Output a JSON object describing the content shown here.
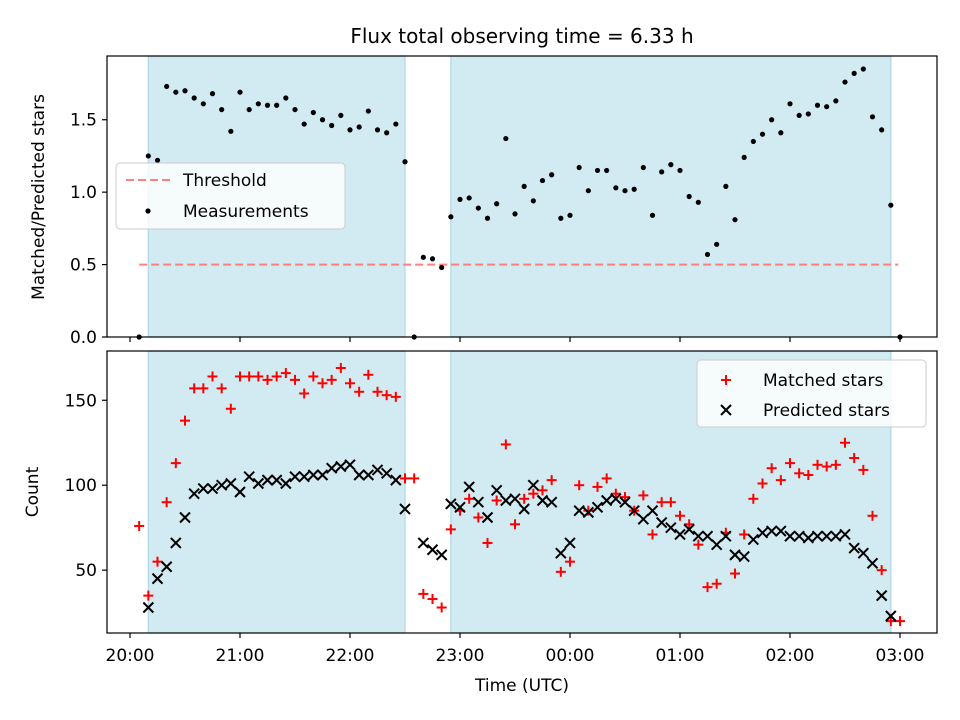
{
  "title": "Flux total observing time = 6.33 h",
  "xlabel": "Time (UTC)",
  "colors": {
    "shade": "#add8e6",
    "threshold": "#ff8080",
    "matched": "#ff0000",
    "predicted": "#000000",
    "measurement": "#000000"
  },
  "chart_data": [
    {
      "type": "scatter",
      "panel": "top",
      "ylabel": "Matched/Predicted stars",
      "ylim": [
        0,
        1.94
      ],
      "yticks": [
        0.0,
        0.5,
        1.0,
        1.5
      ],
      "ytick_labels": [
        "0.0",
        "0.5",
        "1.0",
        "1.5"
      ],
      "xticks": [
        "20:00",
        "21:00",
        "22:00",
        "23:00",
        "00:00",
        "01:00",
        "02:00",
        "03:00"
      ],
      "legend_position": "center-left",
      "shaded_intervals": [
        [
          "20:10",
          "22:30"
        ],
        [
          "22:55",
          "02:55"
        ]
      ],
      "threshold": {
        "name": "Threshold",
        "value": 0.5,
        "x_range": [
          "20:05",
          "02:59"
        ]
      },
      "series": [
        {
          "name": "Measurements",
          "points": [
            [
              "20:05",
              0.0
            ],
            [
              "20:10",
              1.25
            ],
            [
              "20:15",
              1.22
            ],
            [
              "20:20",
              1.73
            ],
            [
              "20:25",
              1.69
            ],
            [
              "20:30",
              1.7
            ],
            [
              "20:35",
              1.65
            ],
            [
              "20:40",
              1.61
            ],
            [
              "20:45",
              1.68
            ],
            [
              "20:50",
              1.57
            ],
            [
              "20:55",
              1.42
            ],
            [
              "21:00",
              1.69
            ],
            [
              "21:05",
              1.57
            ],
            [
              "21:10",
              1.61
            ],
            [
              "21:15",
              1.6
            ],
            [
              "21:20",
              1.6
            ],
            [
              "21:25",
              1.65
            ],
            [
              "21:30",
              1.57
            ],
            [
              "21:35",
              1.47
            ],
            [
              "21:40",
              1.55
            ],
            [
              "21:45",
              1.5
            ],
            [
              "21:50",
              1.46
            ],
            [
              "21:55",
              1.53
            ],
            [
              "22:00",
              1.43
            ],
            [
              "22:05",
              1.45
            ],
            [
              "22:10",
              1.56
            ],
            [
              "22:15",
              1.43
            ],
            [
              "22:20",
              1.41
            ],
            [
              "22:25",
              1.47
            ],
            [
              "22:30",
              1.21
            ],
            [
              "22:35",
              0.0
            ],
            [
              "22:40",
              0.55
            ],
            [
              "22:45",
              0.54
            ],
            [
              "22:50",
              0.48
            ],
            [
              "22:55",
              0.83
            ],
            [
              "23:00",
              0.95
            ],
            [
              "23:05",
              0.96
            ],
            [
              "23:10",
              0.89
            ],
            [
              "23:15",
              0.82
            ],
            [
              "23:20",
              0.92
            ],
            [
              "23:25",
              1.37
            ],
            [
              "23:30",
              0.85
            ],
            [
              "23:35",
              1.04
            ],
            [
              "23:40",
              0.94
            ],
            [
              "23:45",
              1.08
            ],
            [
              "23:50",
              1.12
            ],
            [
              "23:55",
              0.82
            ],
            [
              "00:00",
              0.84
            ],
            [
              "00:05",
              1.17
            ],
            [
              "00:10",
              1.01
            ],
            [
              "00:15",
              1.15
            ],
            [
              "00:20",
              1.15
            ],
            [
              "00:25",
              1.03
            ],
            [
              "00:30",
              1.01
            ],
            [
              "00:35",
              1.02
            ],
            [
              "00:40",
              1.17
            ],
            [
              "00:45",
              0.84
            ],
            [
              "00:50",
              1.14
            ],
            [
              "00:55",
              1.19
            ],
            [
              "01:00",
              1.15
            ],
            [
              "01:05",
              0.97
            ],
            [
              "01:10",
              0.93
            ],
            [
              "01:15",
              0.57
            ],
            [
              "01:20",
              0.64
            ],
            [
              "01:25",
              1.04
            ],
            [
              "01:30",
              0.81
            ],
            [
              "01:35",
              1.24
            ],
            [
              "01:40",
              1.35
            ],
            [
              "01:45",
              1.4
            ],
            [
              "01:50",
              1.5
            ],
            [
              "01:55",
              1.41
            ],
            [
              "02:00",
              1.61
            ],
            [
              "02:05",
              1.53
            ],
            [
              "02:10",
              1.54
            ],
            [
              "02:15",
              1.6
            ],
            [
              "02:20",
              1.59
            ],
            [
              "02:25",
              1.63
            ],
            [
              "02:30",
              1.76
            ],
            [
              "02:35",
              1.82
            ],
            [
              "02:40",
              1.85
            ],
            [
              "02:45",
              1.52
            ],
            [
              "02:50",
              1.43
            ],
            [
              "02:55",
              0.91
            ],
            [
              "03:00",
              0.0
            ]
          ]
        }
      ]
    },
    {
      "type": "scatter",
      "panel": "bottom",
      "ylabel": "Count",
      "ylim": [
        13,
        179
      ],
      "yticks": [
        50,
        100,
        150
      ],
      "ytick_labels": [
        "50",
        "100",
        "150"
      ],
      "xticks": [
        "20:00",
        "21:00",
        "22:00",
        "23:00",
        "00:00",
        "01:00",
        "02:00",
        "03:00"
      ],
      "xtick_labels": [
        "20:00",
        "21:00",
        "22:00",
        "23:00",
        "00:00",
        "01:00",
        "02:00",
        "03:00"
      ],
      "legend_position": "top-right",
      "shaded_intervals": [
        [
          "20:10",
          "22:30"
        ],
        [
          "22:55",
          "02:55"
        ]
      ],
      "series": [
        {
          "name": "Matched stars",
          "marker": "plus",
          "points": [
            [
              "20:05",
              76
            ],
            [
              "20:10",
              35
            ],
            [
              "20:15",
              55
            ],
            [
              "20:20",
              90
            ],
            [
              "20:25",
              113
            ],
            [
              "20:30",
              138
            ],
            [
              "20:35",
              157
            ],
            [
              "20:40",
              157
            ],
            [
              "20:45",
              164
            ],
            [
              "20:50",
              157
            ],
            [
              "20:55",
              145
            ],
            [
              "21:00",
              164
            ],
            [
              "21:05",
              164
            ],
            [
              "21:10",
              164
            ],
            [
              "21:15",
              162
            ],
            [
              "21:20",
              164
            ],
            [
              "21:25",
              166
            ],
            [
              "21:30",
              162
            ],
            [
              "21:35",
              154
            ],
            [
              "21:40",
              164
            ],
            [
              "21:45",
              160
            ],
            [
              "21:50",
              162
            ],
            [
              "21:55",
              169
            ],
            [
              "22:00",
              160
            ],
            [
              "22:05",
              155
            ],
            [
              "22:10",
              165
            ],
            [
              "22:15",
              155
            ],
            [
              "22:20",
              153
            ],
            [
              "22:25",
              152
            ],
            [
              "22:30",
              104
            ],
            [
              "22:35",
              104
            ],
            [
              "22:40",
              36
            ],
            [
              "22:45",
              33
            ],
            [
              "22:50",
              28
            ],
            [
              "22:55",
              74
            ],
            [
              "23:00",
              85
            ],
            [
              "23:05",
              92
            ],
            [
              "23:10",
              81
            ],
            [
              "23:15",
              66
            ],
            [
              "23:20",
              91
            ],
            [
              "23:25",
              124
            ],
            [
              "23:30",
              77
            ],
            [
              "23:35",
              92
            ],
            [
              "23:40",
              95
            ],
            [
              "23:45",
              97
            ],
            [
              "23:50",
              103
            ],
            [
              "23:55",
              49
            ],
            [
              "00:00",
              55
            ],
            [
              "00:05",
              100
            ],
            [
              "00:10",
              85
            ],
            [
              "00:15",
              99
            ],
            [
              "00:20",
              104
            ],
            [
              "00:25",
              95
            ],
            [
              "00:30",
              93
            ],
            [
              "00:35",
              85
            ],
            [
              "00:40",
              94
            ],
            [
              "00:45",
              71
            ],
            [
              "00:50",
              90
            ],
            [
              "00:55",
              90
            ],
            [
              "01:00",
              82
            ],
            [
              "01:05",
              77
            ],
            [
              "01:10",
              65
            ],
            [
              "01:15",
              40
            ],
            [
              "01:20",
              42
            ],
            [
              "01:25",
              72
            ],
            [
              "01:30",
              48
            ],
            [
              "01:35",
              71
            ],
            [
              "01:40",
              92
            ],
            [
              "01:45",
              101
            ],
            [
              "01:50",
              110
            ],
            [
              "01:55",
              103
            ],
            [
              "02:00",
              113
            ],
            [
              "02:05",
              107
            ],
            [
              "02:10",
              106
            ],
            [
              "02:15",
              112
            ],
            [
              "02:20",
              111
            ],
            [
              "02:25",
              112
            ],
            [
              "02:30",
              125
            ],
            [
              "02:35",
              116
            ],
            [
              "02:40",
              109
            ],
            [
              "02:45",
              82
            ],
            [
              "02:50",
              50
            ],
            [
              "02:55",
              20
            ],
            [
              "03:00",
              20
            ]
          ]
        },
        {
          "name": "Predicted stars",
          "marker": "x",
          "points": [
            [
              "20:10",
              28
            ],
            [
              "20:15",
              45
            ],
            [
              "20:20",
              52
            ],
            [
              "20:25",
              66
            ],
            [
              "20:30",
              81
            ],
            [
              "20:35",
              95
            ],
            [
              "20:40",
              98
            ],
            [
              "20:45",
              98
            ],
            [
              "20:50",
              100
            ],
            [
              "20:55",
              101
            ],
            [
              "21:00",
              96
            ],
            [
              "21:05",
              105
            ],
            [
              "21:10",
              101
            ],
            [
              "21:15",
              103
            ],
            [
              "21:20",
              103
            ],
            [
              "21:25",
              101
            ],
            [
              "21:30",
              105
            ],
            [
              "21:35",
              105
            ],
            [
              "21:40",
              106
            ],
            [
              "21:45",
              106
            ],
            [
              "21:50",
              110
            ],
            [
              "21:55",
              111
            ],
            [
              "22:00",
              112
            ],
            [
              "22:05",
              106
            ],
            [
              "22:10",
              106
            ],
            [
              "22:15",
              109
            ],
            [
              "22:20",
              107
            ],
            [
              "22:25",
              103
            ],
            [
              "22:30",
              86
            ],
            [
              "22:40",
              66
            ],
            [
              "22:45",
              62
            ],
            [
              "22:50",
              59
            ],
            [
              "22:55",
              89
            ],
            [
              "23:00",
              87
            ],
            [
              "23:05",
              99
            ],
            [
              "23:10",
              90
            ],
            [
              "23:15",
              81
            ],
            [
              "23:20",
              97
            ],
            [
              "23:25",
              91
            ],
            [
              "23:30",
              92
            ],
            [
              "23:35",
              86
            ],
            [
              "23:40",
              100
            ],
            [
              "23:45",
              91
            ],
            [
              "23:50",
              90
            ],
            [
              "23:55",
              60
            ],
            [
              "00:00",
              66
            ],
            [
              "00:05",
              85
            ],
            [
              "00:10",
              84
            ],
            [
              "00:15",
              87
            ],
            [
              "00:20",
              91
            ],
            [
              "00:25",
              92
            ],
            [
              "00:30",
              90
            ],
            [
              "00:35",
              85
            ],
            [
              "00:40",
              80
            ],
            [
              "00:45",
              85
            ],
            [
              "00:50",
              78
            ],
            [
              "00:55",
              75
            ],
            [
              "01:00",
              71
            ],
            [
              "01:05",
              74
            ],
            [
              "01:10",
              70
            ],
            [
              "01:15",
              70
            ],
            [
              "01:20",
              65
            ],
            [
              "01:25",
              70
            ],
            [
              "01:30",
              59
            ],
            [
              "01:35",
              58
            ],
            [
              "01:40",
              68
            ],
            [
              "01:45",
              72
            ],
            [
              "01:50",
              73
            ],
            [
              "01:55",
              73
            ],
            [
              "02:00",
              70
            ],
            [
              "02:05",
              70
            ],
            [
              "02:10",
              69
            ],
            [
              "02:15",
              70
            ],
            [
              "02:20",
              70
            ],
            [
              "02:25",
              70
            ],
            [
              "02:30",
              71
            ],
            [
              "02:35",
              63
            ],
            [
              "02:40",
              60
            ],
            [
              "02:45",
              54
            ],
            [
              "02:50",
              35
            ],
            [
              "02:55",
              23
            ]
          ]
        }
      ]
    }
  ]
}
